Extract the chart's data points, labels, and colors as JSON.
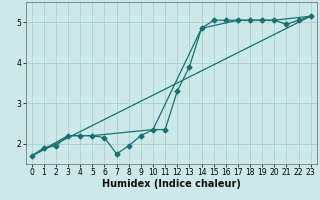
{
  "xlabel": "Humidex (Indice chaleur)",
  "xlim": [
    -0.5,
    23.5
  ],
  "ylim": [
    1.5,
    5.5
  ],
  "xticks": [
    0,
    1,
    2,
    3,
    4,
    5,
    6,
    7,
    8,
    9,
    10,
    11,
    12,
    13,
    14,
    15,
    16,
    17,
    18,
    19,
    20,
    21,
    22,
    23
  ],
  "yticks": [
    2,
    3,
    4,
    5
  ],
  "bg_color": "#cce8e8",
  "grid_color": "#aad0d0",
  "line_color": "#1a7070",
  "line1_x": [
    0,
    1,
    2,
    3,
    4,
    5,
    6,
    7,
    8,
    9,
    10,
    11,
    12,
    13,
    14,
    15,
    16,
    17,
    18,
    19,
    20,
    21,
    22,
    23
  ],
  "line1_y": [
    1.7,
    1.9,
    1.95,
    2.2,
    2.2,
    2.2,
    2.15,
    1.75,
    1.95,
    2.2,
    2.35,
    2.35,
    3.3,
    3.9,
    4.85,
    5.05,
    5.05,
    5.05,
    5.05,
    5.05,
    5.05,
    4.95,
    5.05,
    5.15
  ],
  "line2_x": [
    0,
    3,
    5,
    10,
    14,
    17,
    20,
    23
  ],
  "line2_y": [
    1.7,
    2.2,
    2.2,
    2.35,
    4.85,
    5.05,
    5.05,
    5.15
  ],
  "line3_x": [
    0,
    23
  ],
  "line3_y": [
    1.7,
    5.15
  ],
  "tick_fontsize": 5.5,
  "xlabel_fontsize": 7.0
}
